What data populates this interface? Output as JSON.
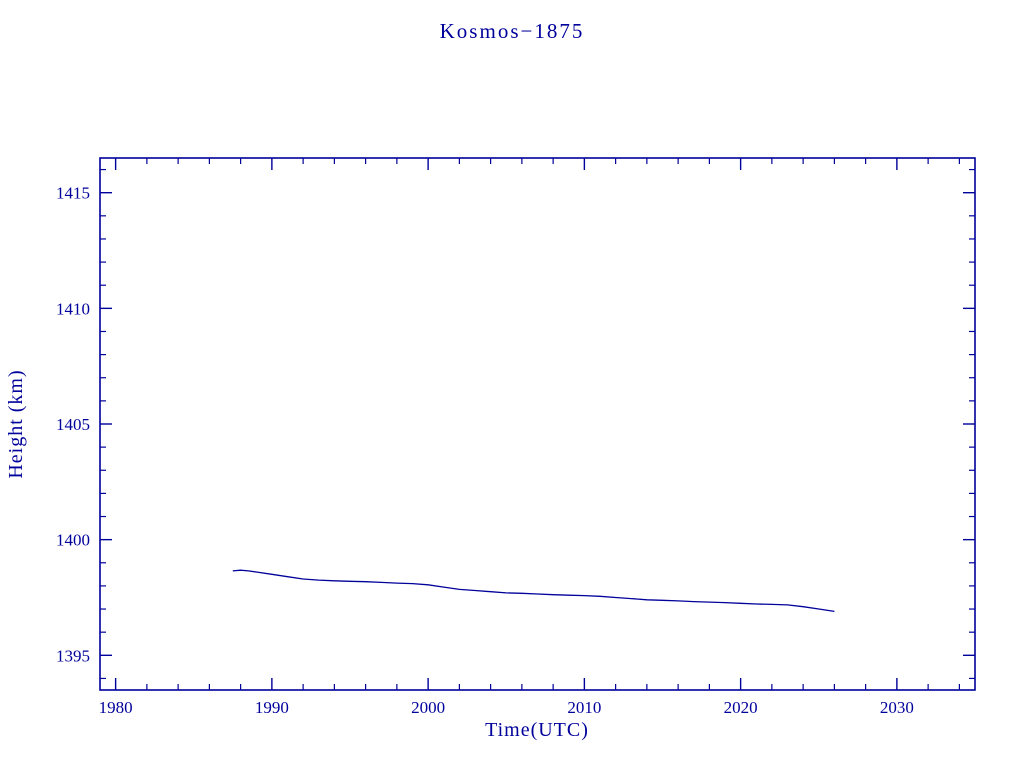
{
  "colors": {
    "accent": "#00009B",
    "background": "#FFFFFF"
  },
  "chart_data": {
    "type": "line",
    "title": "Kosmos−1875",
    "xlabel": "Time(UTC)",
    "ylabel": "Height (km)",
    "xlim": [
      1979,
      2035
    ],
    "ylim": [
      1393.5,
      1416.5
    ],
    "xticks": [
      1980,
      1990,
      2000,
      2010,
      2020,
      2030
    ],
    "yticks": [
      1395,
      1400,
      1405,
      1410,
      1415
    ],
    "xminor_step": 2,
    "yminor_step": 1,
    "grid": false,
    "legend": "none",
    "series": [
      {
        "name": "height",
        "x": [
          1987.5,
          1988,
          1988.5,
          1989,
          1990,
          1991,
          1992,
          1993,
          1994,
          1995,
          1996,
          1997,
          1998,
          1999,
          2000,
          2001,
          2002,
          2003,
          2004,
          2005,
          2006,
          2007,
          2008,
          2009,
          2010,
          2011,
          2012,
          2013,
          2014,
          2015,
          2016,
          2017,
          2018,
          2019,
          2020,
          2021,
          2022,
          2023,
          2024,
          2025,
          2026
        ],
        "y": [
          1398.65,
          1398.68,
          1398.65,
          1398.6,
          1398.5,
          1398.4,
          1398.3,
          1398.25,
          1398.22,
          1398.2,
          1398.18,
          1398.15,
          1398.12,
          1398.1,
          1398.05,
          1397.95,
          1397.85,
          1397.8,
          1397.75,
          1397.7,
          1397.68,
          1397.65,
          1397.62,
          1397.6,
          1397.58,
          1397.55,
          1397.5,
          1397.45,
          1397.4,
          1397.38,
          1397.35,
          1397.32,
          1397.3,
          1397.28,
          1397.25,
          1397.22,
          1397.2,
          1397.18,
          1397.1,
          1397.0,
          1396.9
        ]
      }
    ]
  }
}
